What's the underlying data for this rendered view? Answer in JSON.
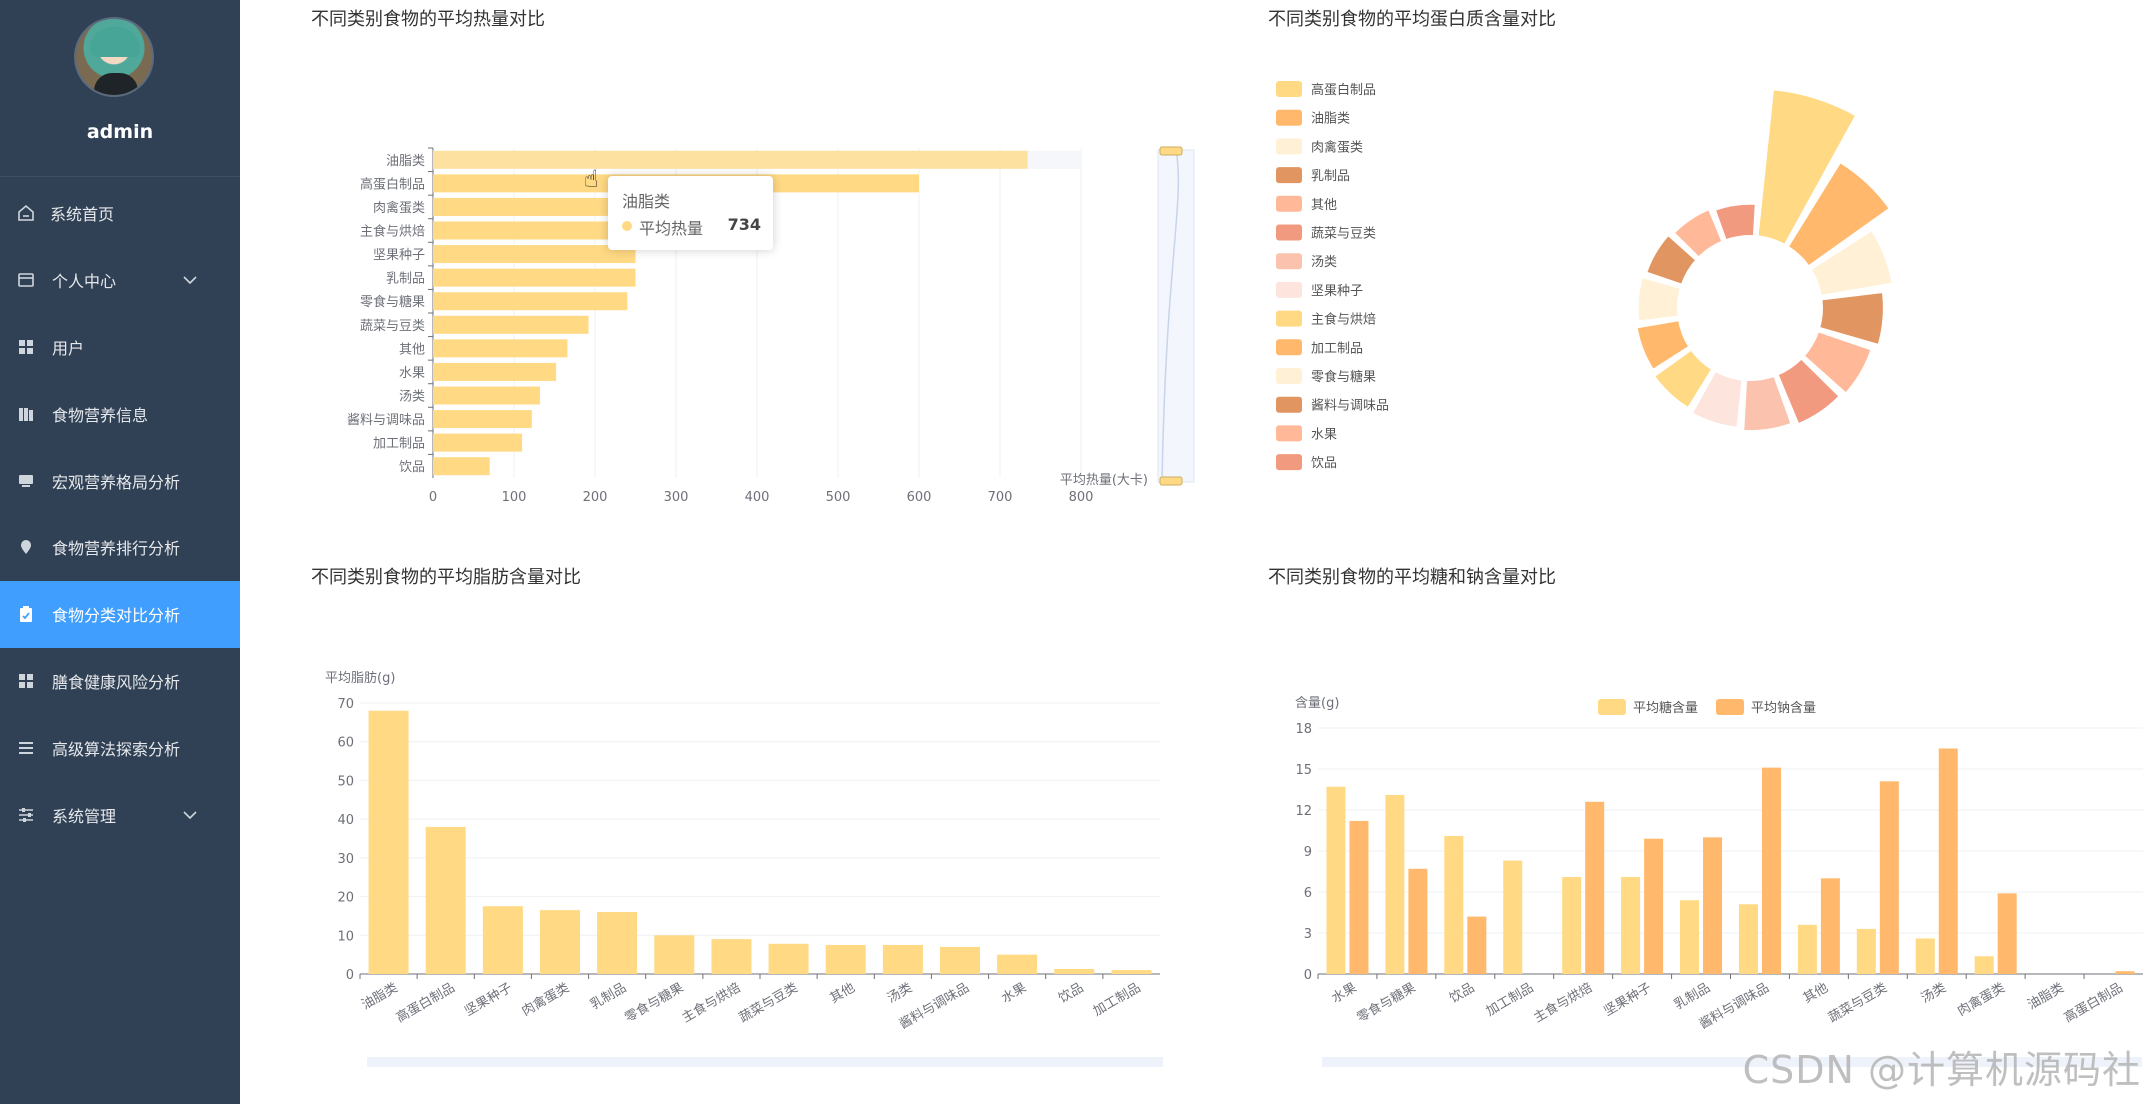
{
  "user": {
    "name": "admin"
  },
  "menu": [
    {
      "id": "home",
      "label": "系统首页",
      "icon": "home-icon",
      "arrow": false,
      "active": false
    },
    {
      "id": "personal",
      "label": "个人中心",
      "icon": "wallet-icon",
      "arrow": true,
      "active": false
    },
    {
      "id": "users",
      "label": "用户",
      "icon": "grid-icon",
      "arrow": false,
      "active": false
    },
    {
      "id": "food-info",
      "label": "食物营养信息",
      "icon": "book-icon",
      "arrow": false,
      "active": false
    },
    {
      "id": "macro",
      "label": "宏观营养格局分析",
      "icon": "monitor-icon",
      "arrow": false,
      "active": false
    },
    {
      "id": "ranking",
      "label": "食物营养排行分析",
      "icon": "location-icon",
      "arrow": false,
      "active": false
    },
    {
      "id": "category",
      "label": "食物分类对比分析",
      "icon": "clipboard-icon",
      "arrow": false,
      "active": true
    },
    {
      "id": "risk",
      "label": "膳食健康风险分析",
      "icon": "grid-icon",
      "arrow": false,
      "active": false
    },
    {
      "id": "algo",
      "label": "高级算法探索分析",
      "icon": "list-icon",
      "arrow": false,
      "active": false
    },
    {
      "id": "system",
      "label": "系统管理",
      "icon": "sliders-icon",
      "arrow": true,
      "active": false
    }
  ],
  "colors": {
    "sidebar": "#304156",
    "active": "#409eff",
    "bar": "#ffd983",
    "bar2": "#ffb86c"
  },
  "chart_data": [
    {
      "id": "calories",
      "type": "bar",
      "orientation": "horizontal",
      "title": "不同类别食物的平均热量对比",
      "categories": [
        "油脂类",
        "高蛋白制品",
        "肉禽蛋类",
        "主食与烘焙",
        "坚果种子",
        "乳制品",
        "零食与糖果",
        "蔬菜与豆类",
        "其他",
        "水果",
        "汤类",
        "酱料与调味品",
        "加工制品",
        "饮品"
      ],
      "series": [
        {
          "name": "平均热量",
          "values": [
            734,
            600,
            245,
            250,
            250,
            250,
            240,
            192,
            166,
            152,
            132,
            122,
            110,
            70
          ]
        }
      ],
      "xlabel": "平均热量(大卡)",
      "ticks": [
        "0",
        "100",
        "200",
        "300",
        "400",
        "500",
        "600",
        "700",
        "800"
      ],
      "xlim": [
        0,
        800
      ],
      "tooltip": {
        "title": "油脂类",
        "label": "平均热量",
        "value": "734"
      }
    },
    {
      "id": "protein",
      "type": "pie",
      "style": "rose",
      "title": "不同类别食物的平均蛋白质含量对比",
      "legend": [
        "高蛋白制品",
        "油脂类",
        "肉禽蛋类",
        "乳制品",
        "其他",
        "蔬菜与豆类",
        "汤类",
        "坚果种子",
        "主食与烘焙",
        "加工制品",
        "零食与糖果",
        "酱料与调味品",
        "水果",
        "饮品"
      ],
      "legend_position": "left",
      "values": [
        26,
        17,
        12,
        10,
        9,
        8.5,
        8,
        7.5,
        7,
        6.5,
        6,
        5.5,
        5,
        4.5
      ]
    },
    {
      "id": "fat",
      "type": "bar",
      "title": "不同类别食物的平均脂肪含量对比",
      "ylabel": "平均脂肪(g)",
      "categories": [
        "油脂类",
        "高蛋白制品",
        "坚果种子",
        "肉禽蛋类",
        "乳制品",
        "零食与糖果",
        "主食与烘焙",
        "蔬菜与豆类",
        "其他",
        "汤类",
        "酱料与调味品",
        "水果",
        "饮品",
        "加工制品"
      ],
      "series": [
        {
          "name": "平均脂肪",
          "values": [
            68,
            38,
            17.5,
            16.5,
            16,
            10,
            9,
            7.8,
            7.5,
            7.5,
            7,
            5,
            1.3,
            1
          ]
        }
      ],
      "yticks": [
        "0",
        "10",
        "20",
        "30",
        "40",
        "50",
        "60",
        "70"
      ],
      "ylim": [
        0,
        70
      ]
    },
    {
      "id": "sugar-sodium",
      "type": "bar",
      "title": "不同类别食物的平均糖和钠含量对比",
      "ylabel": "含量(g)",
      "legend": [
        "平均糖含量",
        "平均钠含量"
      ],
      "categories": [
        "水果",
        "零食与糖果",
        "饮品",
        "加工制品",
        "主食与烘焙",
        "坚果种子",
        "乳制品",
        "酱料与调味品",
        "其他",
        "蔬菜与豆类",
        "汤类",
        "肉禽蛋类",
        "油脂类",
        "高蛋白制品"
      ],
      "series": [
        {
          "name": "平均糖含量",
          "values": [
            13.7,
            13.1,
            10.1,
            8.3,
            7.1,
            7.1,
            5.4,
            5.1,
            3.6,
            3.3,
            2.6,
            1.3,
            0,
            0
          ]
        },
        {
          "name": "平均钠含量",
          "values": [
            11.2,
            7.7,
            4.2,
            0,
            12.6,
            9.9,
            10,
            15.1,
            7,
            14.1,
            16.5,
            5.9,
            0,
            0.2
          ]
        }
      ],
      "yticks": [
        "0",
        "3",
        "6",
        "9",
        "12",
        "15",
        "18"
      ],
      "ylim": [
        0,
        18
      ]
    }
  ],
  "watermark": "CSDN @计算机源码社"
}
